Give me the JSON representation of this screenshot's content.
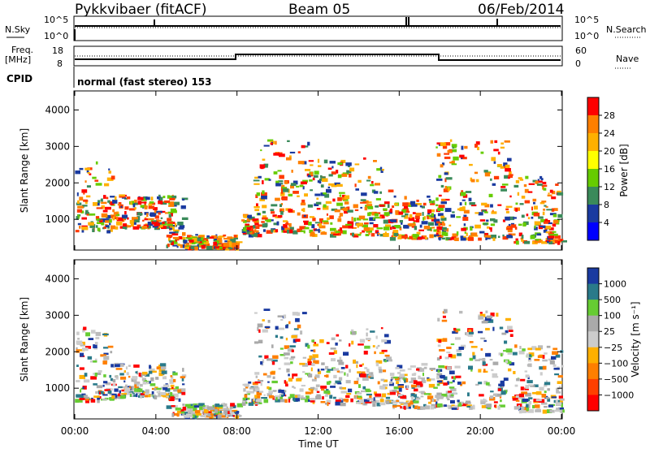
{
  "header": {
    "station": "Pykkvibaer (fitACF)",
    "beam": "Beam 05",
    "date": "06/Feb/2014"
  },
  "top_panels": {
    "nsky_label": "N.Sky",
    "nsearch_label": "N.Search",
    "noise_ticks_left": [
      "10^5",
      "10^0"
    ],
    "noise_ticks_right": [
      "10^5",
      "10^0"
    ],
    "freq_label_line1": "Freq.",
    "freq_label_line2": "[MHz]",
    "freq_ticks": [
      "18",
      "8"
    ],
    "nave_label": "Nave",
    "nave_ticks": [
      "60",
      "0"
    ],
    "cpid_label": "CPID",
    "cpid_text": "normal (fast stereo) 153"
  },
  "power_colorbar": {
    "title": "Power [dB]",
    "ticks": [
      "28",
      "24",
      "20",
      "16",
      "12",
      "8",
      "4"
    ],
    "colors": [
      "#ff0000",
      "#ff7f00",
      "#ffb000",
      "#ffff00",
      "#66cc00",
      "#3a8a5a",
      "#1a3aa0",
      "#0000ff"
    ]
  },
  "velocity_colorbar": {
    "title": "Velocity [m s⁻¹]",
    "ticks": [
      "1000",
      "500",
      "100",
      "25",
      "−25",
      "−100",
      "−500",
      "−1000"
    ],
    "colors": [
      "#1a3aa0",
      "#2a7a8a",
      "#66cc33",
      "#aaaaaa",
      "#cccccc",
      "#ffb000",
      "#ff7f00",
      "#ff4000",
      "#ff0000"
    ]
  },
  "chart_data": [
    {
      "type": "heatmap",
      "title": "Power",
      "xlabel": "",
      "ylabel": "Slant Range [km]",
      "xlim": [
        0,
        24
      ],
      "ylim": [
        180,
        4500
      ],
      "yticks": [
        "4000",
        "3000",
        "2000",
        "1000"
      ],
      "xticks": [],
      "colorbar_label": "Power [dB]",
      "series": [
        {
          "name": "",
          "x": [
            0.5,
            2.0,
            4.0,
            6.0,
            9.5,
            12.0,
            14.0,
            16.0,
            18.5,
            21.0,
            23.0
          ],
          "y": [
            1200,
            1100,
            1400,
            450,
            1400,
            1100,
            900,
            900,
            1000,
            1100,
            800
          ]
        }
      ]
    },
    {
      "type": "heatmap",
      "title": "Velocity",
      "xlabel": "Time UT",
      "ylabel": "Slant Range [km]",
      "xlim": [
        0,
        24
      ],
      "ylim": [
        180,
        4500
      ],
      "yticks": [
        "4000",
        "3000",
        "2000",
        "1000"
      ],
      "xticks": [
        "00:00",
        "04:00",
        "08:00",
        "12:00",
        "16:00",
        "20:00",
        "00:00"
      ],
      "colorbar_label": "Velocity [m s⁻¹]",
      "series": [
        {
          "name": "",
          "x": [
            0.5,
            2.0,
            4.0,
            6.0,
            9.5,
            12.0,
            14.0,
            16.0,
            18.5,
            21.0,
            23.0
          ],
          "y": [
            1200,
            1100,
            1400,
            450,
            1400,
            1100,
            900,
            900,
            1000,
            1100,
            800
          ]
        }
      ]
    }
  ],
  "time_axis_label": "Time UT"
}
